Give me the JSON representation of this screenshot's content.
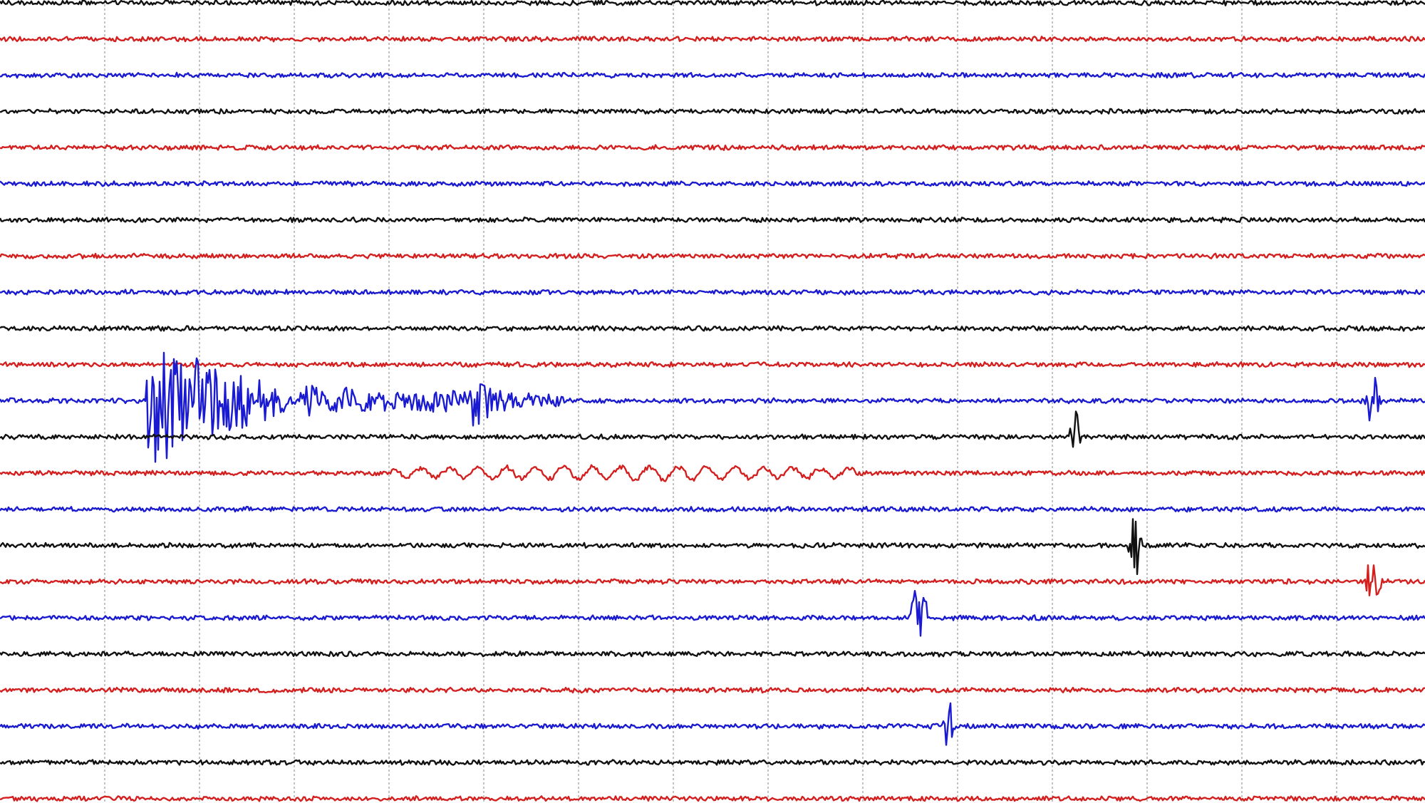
{
  "seismogram": {
    "traces": [
      {
        "color": "#111111"
      },
      {
        "color": "#d41f1f"
      },
      {
        "color": "#1a1ad0"
      },
      {
        "color": "#111111"
      },
      {
        "color": "#d41f1f"
      },
      {
        "color": "#1a1ad0"
      },
      {
        "color": "#111111"
      },
      {
        "color": "#d41f1f"
      },
      {
        "color": "#1a1ad0"
      },
      {
        "color": "#111111"
      },
      {
        "color": "#d41f1f"
      },
      {
        "color": "#1a1ad0"
      },
      {
        "color": "#111111"
      },
      {
        "color": "#d41f1f"
      },
      {
        "color": "#1a1ad0"
      },
      {
        "color": "#111111"
      },
      {
        "color": "#d41f1f"
      },
      {
        "color": "#1a1ad0"
      },
      {
        "color": "#111111"
      },
      {
        "color": "#d41f1f"
      },
      {
        "color": "#1a1ad0"
      },
      {
        "color": "#111111"
      },
      {
        "color": "#d41f1f"
      }
    ]
  }
}
